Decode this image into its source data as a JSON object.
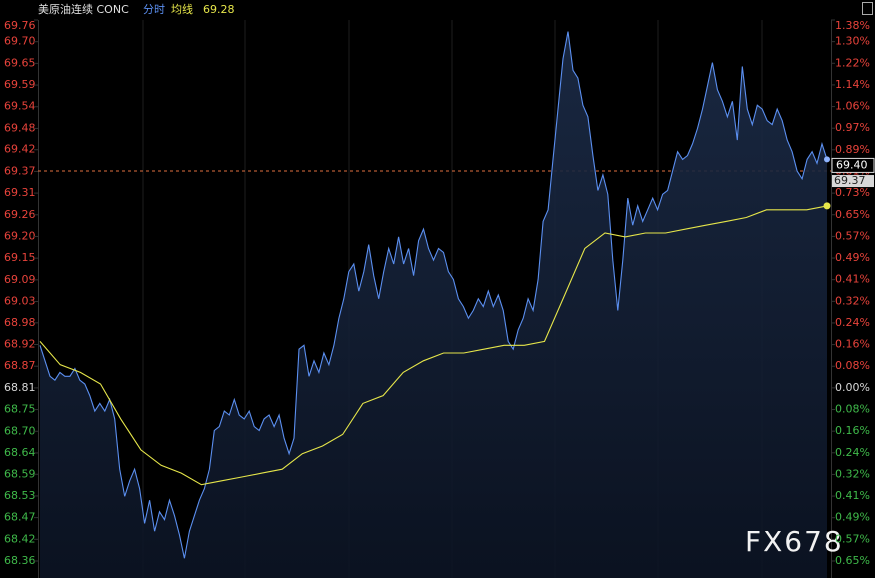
{
  "chart_data": {
    "type": "line",
    "title": "美原油连续 CONC",
    "legend_value": 69.28,
    "watermark": "FX678",
    "up_color": "#e8433b",
    "down_color": "#3fb94a",
    "flat_color": "#d8d8d8",
    "ylim": [
      68.363,
      69.76
    ],
    "yticks": [
      {
        "value": 69.76,
        "label": "69.76"
      },
      {
        "value": 69.704,
        "label": "69.70"
      },
      {
        "value": 69.648,
        "label": "69.65"
      },
      {
        "value": 69.592,
        "label": "69.59"
      },
      {
        "value": 69.536,
        "label": "69.54"
      },
      {
        "value": 69.48,
        "label": "69.48"
      },
      {
        "value": 69.425,
        "label": "69.42"
      },
      {
        "value": 69.369,
        "label": "69.37"
      },
      {
        "value": 69.313,
        "label": "69.31"
      },
      {
        "value": 69.257,
        "label": "69.26"
      },
      {
        "value": 69.201,
        "label": "69.20"
      },
      {
        "value": 69.145,
        "label": "69.15"
      },
      {
        "value": 69.089,
        "label": "69.09"
      },
      {
        "value": 69.033,
        "label": "69.03"
      },
      {
        "value": 68.978,
        "label": "68.98"
      },
      {
        "value": 68.922,
        "label": "68.92"
      },
      {
        "value": 68.866,
        "label": "68.87"
      },
      68.81,
      {
        "value": 68.754,
        "label": "68.75"
      },
      {
        "value": 68.698,
        "label": "68.70"
      },
      {
        "value": 68.642,
        "label": "68.64"
      },
      {
        "value": 68.587,
        "label": "68.59"
      },
      {
        "value": 68.531,
        "label": "68.53"
      },
      {
        "value": 68.475,
        "label": "68.47"
      },
      {
        "value": 68.419,
        "label": "68.42"
      },
      {
        "value": 68.363,
        "label": "68.36"
      }
    ],
    "y2lim": [
      -0.6496,
      1.3804
    ],
    "y2ticks": [
      {
        "value": 1.3804,
        "label": "1.38%"
      },
      {
        "value": 1.2992,
        "label": "1.30%"
      },
      {
        "value": 1.218,
        "label": "1.22%"
      },
      {
        "value": 1.1368,
        "label": "1.14%"
      },
      {
        "value": 1.0556,
        "label": "1.06%"
      },
      {
        "value": 0.9744,
        "label": "0.97%"
      },
      {
        "value": 0.8932,
        "label": "0.89%"
      },
      {
        "value": 0.812,
        "label": "0.81%"
      },
      {
        "value": 0.7308,
        "label": "0.73%"
      },
      {
        "value": 0.6496,
        "label": "0.65%"
      },
      {
        "value": 0.5684,
        "label": "0.57%"
      },
      {
        "value": 0.4872,
        "label": "0.49%"
      },
      {
        "value": 0.406,
        "label": "0.41%"
      },
      {
        "value": 0.3248,
        "label": "0.32%"
      },
      {
        "value": 0.2436,
        "label": "0.24%"
      },
      {
        "value": 0.1624,
        "label": "0.16%"
      },
      {
        "value": 0.0812,
        "label": "0.08%"
      },
      {
        "value": 0,
        "label": "0.00%"
      },
      {
        "value": -0.0812,
        "label": "0.08%"
      },
      {
        "value": -0.1624,
        "label": "0.16%"
      },
      {
        "value": -0.2436,
        "label": "0.24%"
      },
      {
        "value": -0.3248,
        "label": "0.32%"
      },
      {
        "value": -0.406,
        "label": "0.41%"
      },
      {
        "value": -0.4872,
        "label": "0.49%"
      },
      {
        "value": -0.5684,
        "label": "0.57%"
      },
      {
        "value": -0.6496,
        "label": "0.65%"
      }
    ],
    "reference_line": {
      "value": 69.37,
      "label": "69.37",
      "color": "#e07040"
    },
    "last_price": {
      "value": 69.4,
      "label": "69.40"
    },
    "series": [
      {
        "name": "分时",
        "color": "#5b8ff0",
        "values": [
          68.92,
          68.88,
          68.84,
          68.83,
          68.85,
          68.84,
          68.84,
          68.86,
          68.83,
          68.82,
          68.79,
          68.75,
          68.77,
          68.75,
          68.78,
          68.73,
          68.6,
          68.53,
          68.57,
          68.6,
          68.55,
          68.46,
          68.52,
          68.44,
          68.49,
          68.47,
          68.52,
          68.48,
          68.43,
          68.37,
          68.44,
          68.48,
          68.52,
          68.55,
          68.6,
          68.7,
          68.71,
          68.75,
          68.74,
          68.78,
          68.74,
          68.73,
          68.75,
          68.71,
          68.7,
          68.73,
          68.74,
          68.71,
          68.74,
          68.68,
          68.64,
          68.68,
          68.91,
          68.92,
          68.84,
          68.88,
          68.85,
          68.9,
          68.87,
          68.92,
          68.99,
          69.04,
          69.11,
          69.13,
          69.06,
          69.11,
          69.18,
          69.1,
          69.04,
          69.11,
          69.17,
          69.13,
          69.2,
          69.13,
          69.17,
          69.1,
          69.19,
          69.22,
          69.17,
          69.14,
          69.17,
          69.16,
          69.11,
          69.09,
          69.04,
          69.02,
          68.99,
          69.01,
          69.04,
          69.02,
          69.06,
          69.02,
          69.05,
          69.01,
          68.93,
          68.91,
          68.96,
          68.99,
          69.04,
          69.01,
          69.09,
          69.24,
          69.27,
          69.4,
          69.53,
          69.66,
          69.73,
          69.63,
          69.61,
          69.54,
          69.51,
          69.41,
          69.32,
          69.36,
          69.31,
          69.14,
          69.01,
          69.14,
          69.3,
          69.23,
          69.28,
          69.24,
          69.27,
          69.3,
          69.27,
          69.31,
          69.32,
          69.37,
          69.42,
          69.4,
          69.41,
          69.44,
          69.48,
          69.53,
          69.59,
          69.65,
          69.58,
          69.55,
          69.51,
          69.55,
          69.45,
          69.64,
          69.53,
          69.49,
          69.54,
          69.53,
          69.5,
          69.49,
          69.53,
          69.5,
          69.45,
          69.42,
          69.37,
          69.35,
          69.4,
          69.42,
          69.39,
          69.44,
          69.4
        ]
      },
      {
        "name": "均线",
        "color": "#e6e64a",
        "values": [
          68.93,
          68.87,
          68.85,
          68.82,
          68.73,
          68.65,
          68.61,
          68.59,
          68.56,
          68.57,
          68.58,
          68.59,
          68.6,
          68.64,
          68.66,
          68.69,
          68.77,
          68.79,
          68.85,
          68.88,
          68.9,
          68.9,
          68.91,
          68.92,
          68.92,
          68.93,
          69.05,
          69.17,
          69.21,
          69.2,
          69.21,
          69.21,
          69.22,
          69.23,
          69.24,
          69.25,
          69.27,
          69.27,
          69.27,
          69.28
        ]
      }
    ]
  }
}
